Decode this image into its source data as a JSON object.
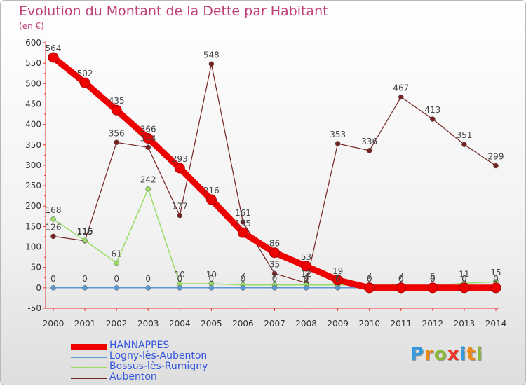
{
  "chart_data": {
    "type": "line",
    "title": "Evolution du Montant de la Dette par Habitant",
    "unit_label": "(en €)",
    "x": [
      "2000",
      "2001",
      "2002",
      "2003",
      "2004",
      "2005",
      "2006",
      "2007",
      "2008",
      "2009",
      "2010",
      "2011",
      "2012",
      "2013",
      "2014"
    ],
    "ylim": [
      -50,
      600
    ],
    "yticks": [
      -50,
      0,
      50,
      100,
      150,
      200,
      250,
      300,
      350,
      400,
      450,
      500,
      550,
      600
    ],
    "grid": false,
    "legend_position": "bottom-left",
    "series": [
      {
        "name": "HANNAPPES",
        "color": "#ee0000",
        "values": [
          564,
          502,
          435,
          366,
          293,
          216,
          135,
          86,
          53,
          19,
          0,
          0,
          0,
          0,
          0
        ]
      },
      {
        "name": "Logny-lès-Aubenton",
        "color": "#5b9bd5",
        "values": [
          0,
          0,
          0,
          0,
          0,
          0,
          0,
          0,
          0,
          0,
          0,
          0,
          0,
          0,
          0
        ]
      },
      {
        "name": "Bossus-lès-Rumigny",
        "color": "#99dd66",
        "values": [
          168,
          116,
          61,
          242,
          10,
          10,
          7,
          7,
          7,
          7,
          7,
          7,
          6,
          11,
          15
        ]
      },
      {
        "name": "Aubenton",
        "color": "#772222",
        "values": [
          126,
          115,
          356,
          344,
          177,
          548,
          161,
          35,
          12,
          353,
          336,
          467,
          413,
          351,
          299
        ]
      }
    ]
  },
  "logo": {
    "letters": [
      "P",
      "r",
      "o",
      "x",
      "i",
      "t",
      "i"
    ],
    "colors": [
      "#3399dd",
      "#ee8811",
      "#88bb33",
      "#ee3322",
      "#3399dd",
      "#ee8811",
      "#88bb33"
    ]
  }
}
